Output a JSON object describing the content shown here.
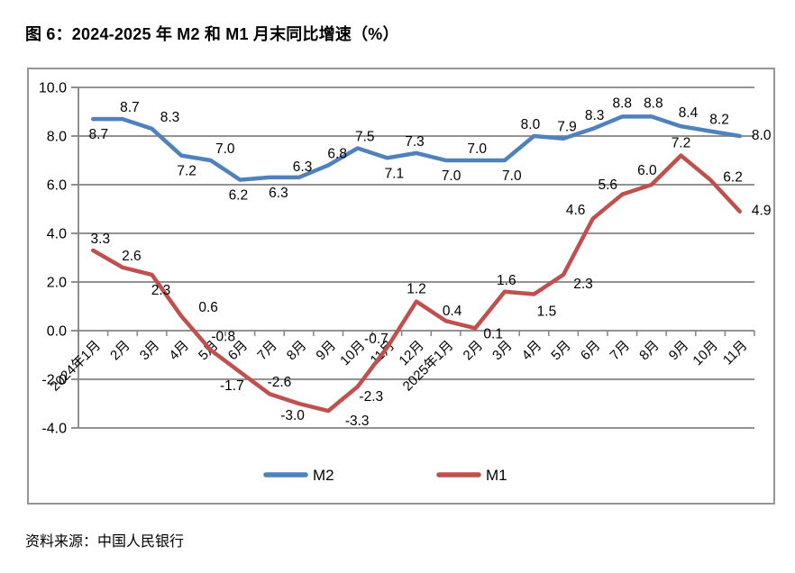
{
  "page": {
    "title": "图 6：2024-2025 年 M2 和 M1 月末同比增速（%）",
    "source": "资料来源：中国人民银行"
  },
  "chart_data": {
    "type": "line",
    "title": "图 6：2024-2025 年 M2 和 M1 月末同比增速（%）",
    "categories": [
      "2024年1月",
      "2月",
      "3月",
      "4月",
      "5月",
      "6月",
      "7月",
      "8月",
      "9月",
      "10月",
      "11月",
      "12月",
      "2025年1月",
      "2月",
      "3月",
      "4月",
      "5月",
      "6月",
      "7月",
      "8月",
      "9月",
      "10月",
      "11月"
    ],
    "series": [
      {
        "name": "M2",
        "color": "#4F81BD",
        "values": [
          8.7,
          8.7,
          8.3,
          7.2,
          7.0,
          6.2,
          6.3,
          6.3,
          6.8,
          7.5,
          7.1,
          7.3,
          7.0,
          7.0,
          7.0,
          8.0,
          7.9,
          8.3,
          8.8,
          8.8,
          8.4,
          8.2,
          8.0
        ],
        "label_offsets": [
          [
            6,
            22
          ],
          [
            8,
            -8
          ],
          [
            20,
            -8
          ],
          [
            6,
            22
          ],
          [
            16,
            -8
          ],
          [
            -2,
            22
          ],
          [
            10,
            22
          ],
          [
            4,
            -7
          ],
          [
            10,
            -8
          ],
          [
            8,
            -8
          ],
          [
            8,
            22
          ],
          [
            -2,
            -8
          ],
          [
            6,
            22
          ],
          [
            2,
            -8
          ],
          [
            8,
            22
          ],
          [
            -4,
            -8
          ],
          [
            4,
            -8
          ],
          [
            2,
            -10
          ],
          [
            0,
            -10
          ],
          [
            2,
            -10
          ],
          [
            8,
            -10
          ],
          [
            10,
            -8
          ],
          [
            24,
            4
          ]
        ]
      },
      {
        "name": "M1",
        "color": "#C0504D",
        "values": [
          3.3,
          2.6,
          2.3,
          0.6,
          -0.8,
          -1.7,
          -2.6,
          -3.0,
          -3.3,
          -2.3,
          -0.7,
          1.2,
          0.4,
          0.1,
          1.6,
          1.5,
          2.3,
          4.6,
          5.6,
          6.0,
          7.2,
          6.2,
          4.9
        ],
        "label_offsets": [
          [
            8,
            -8
          ],
          [
            10,
            -8
          ],
          [
            10,
            22
          ],
          [
            30,
            -5
          ],
          [
            14,
            -10
          ],
          [
            -9,
            20
          ],
          [
            11,
            -8
          ],
          [
            -7,
            18
          ],
          [
            32,
            16
          ],
          [
            15,
            16
          ],
          [
            -12,
            -5
          ],
          [
            0,
            -9
          ],
          [
            7,
            -6
          ],
          [
            20,
            11
          ],
          [
            2,
            -8
          ],
          [
            14,
            24
          ],
          [
            22,
            15
          ],
          [
            -19,
            -5
          ],
          [
            -16,
            -6
          ],
          [
            -5,
            -11
          ],
          [
            0,
            -9
          ],
          [
            25,
            2
          ],
          [
            24,
            4
          ]
        ]
      }
    ],
    "ylim": [
      -4,
      10
    ],
    "ytick_step": 2,
    "ytick_decimals": 1,
    "label_decimals": 1,
    "grid": true,
    "legend_position": "bottom-inside",
    "axis_color": "#838383",
    "text_color": "#000000"
  }
}
